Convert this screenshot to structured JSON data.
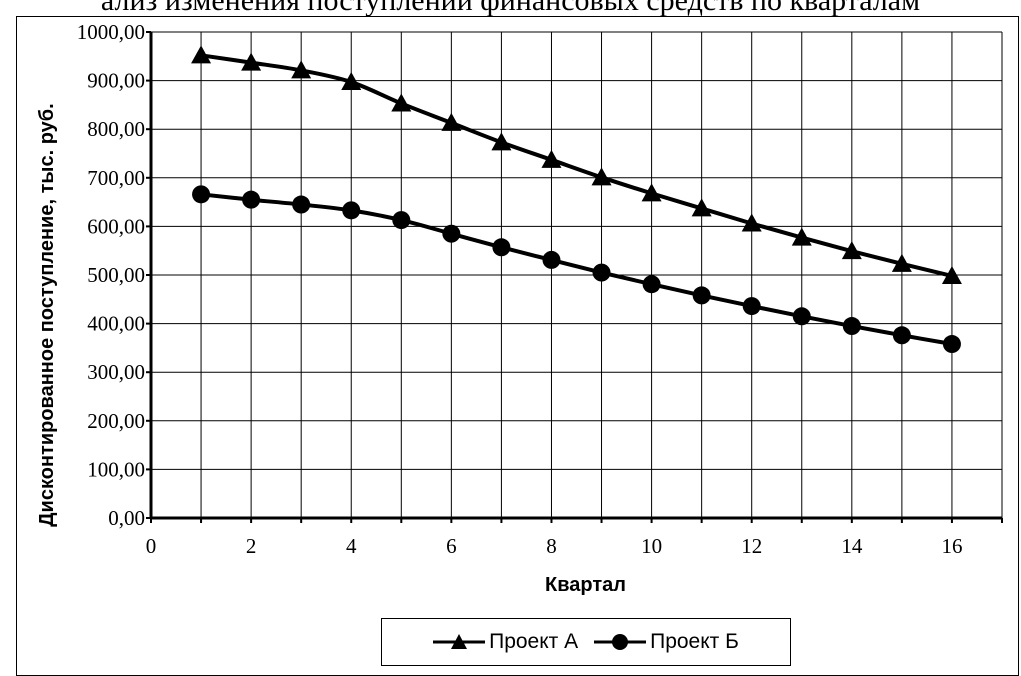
{
  "page_title": "ализ изменения поступлений финансовых средств по кварталам",
  "chart_data": {
    "type": "line",
    "title": "ализ изменения поступлений финансовых средств по кварталам",
    "xlabel": "Квартал",
    "ylabel": "Дисконтированное поступление, тыс. руб.",
    "xlim": [
      0,
      17
    ],
    "ylim": [
      0,
      1000
    ],
    "x_ticks": [
      "0",
      "2",
      "4",
      "6",
      "8",
      "10",
      "12",
      "14",
      "16"
    ],
    "y_ticks": [
      "0,00",
      "100,00",
      "200,00",
      "300,00",
      "400,00",
      "500,00",
      "600,00",
      "700,00",
      "800,00",
      "900,00",
      "1000,00"
    ],
    "grid": true,
    "legend_position": "bottom",
    "x": [
      1,
      2,
      3,
      4,
      5,
      6,
      7,
      8,
      9,
      10,
      11,
      12,
      13,
      14,
      15,
      16
    ],
    "series": [
      {
        "name": "Проект А",
        "marker": "triangle",
        "color": "#000000",
        "values": [
          952,
          937,
          921,
          897,
          853,
          813,
          773,
          737,
          701,
          668,
          637,
          606,
          577,
          549,
          523,
          498
        ]
      },
      {
        "name": "Проект Б",
        "marker": "circle",
        "color": "#000000",
        "values": [
          666,
          655,
          645,
          633,
          613,
          585,
          557,
          531,
          505,
          481,
          458,
          436,
          415,
          395,
          376,
          358
        ]
      }
    ]
  }
}
